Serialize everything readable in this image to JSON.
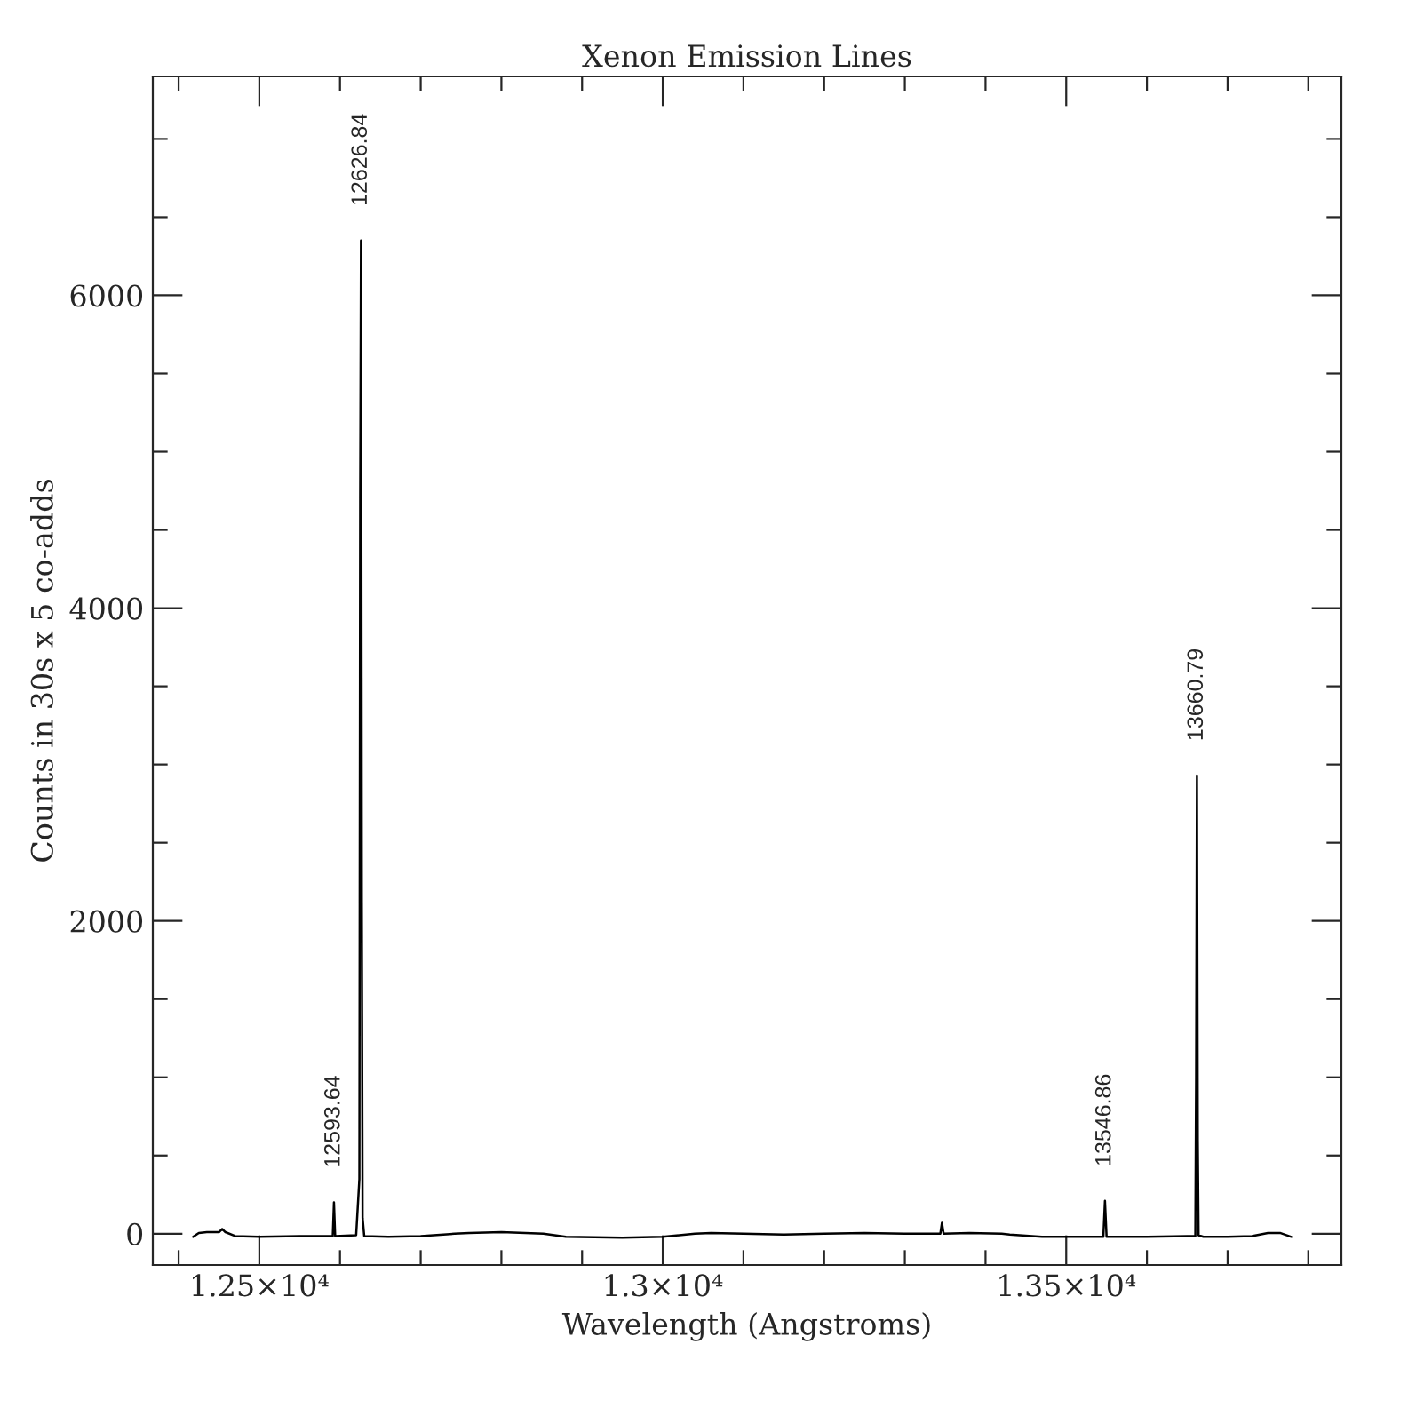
{
  "chart_data": {
    "type": "line",
    "title": "Xenon Emission Lines",
    "xlabel": "Wavelength (Angstroms)",
    "ylabel": "Counts in 30s x 5 co-adds",
    "xlim": [
      12368,
      13841
    ],
    "ylim": [
      -200,
      7400
    ],
    "xticks": [
      {
        "value": 12400,
        "label": null
      },
      {
        "value": 12500,
        "label": "1.25×10⁴"
      },
      {
        "value": 12600,
        "label": null
      },
      {
        "value": 12700,
        "label": null
      },
      {
        "value": 12800,
        "label": null
      },
      {
        "value": 12900,
        "label": null
      },
      {
        "value": 13000,
        "label": "1.3×10⁴"
      },
      {
        "value": 13100,
        "label": null
      },
      {
        "value": 13200,
        "label": null
      },
      {
        "value": 13300,
        "label": null
      },
      {
        "value": 13400,
        "label": null
      },
      {
        "value": 13500,
        "label": "1.35×10⁴"
      },
      {
        "value": 13600,
        "label": null
      },
      {
        "value": 13700,
        "label": null
      },
      {
        "value": 13800,
        "label": null
      }
    ],
    "yticks": [
      0,
      {
        "value": 500,
        "label": null
      },
      {
        "value": 1000,
        "label": null
      },
      {
        "value": 1500,
        "label": null
      },
      2000,
      {
        "value": 2500,
        "label": null
      },
      {
        "value": 3000,
        "label": null
      },
      {
        "value": 3500,
        "label": null
      },
      4000,
      {
        "value": 4500,
        "label": null
      },
      {
        "value": 5000,
        "label": null
      },
      {
        "value": 5500,
        "label": null
      },
      6000,
      {
        "value": 6500,
        "label": null
      },
      {
        "value": 7000,
        "label": null
      }
    ],
    "grid": false,
    "marker": "none",
    "line_style": "solid",
    "series": [
      {
        "color": "#000000",
        "x": [
          12418,
          12425,
          12435,
          12450,
          12454,
          12458,
          12470,
          12500,
          12550,
          12591,
          12592.5,
          12594,
          12620,
          12624,
          12625,
          12626,
          12627,
          12628,
          12630,
          12660,
          12700,
          12742,
          12760,
          12800,
          12852,
          12880,
          12950,
          13000,
          13040,
          13060,
          13100,
          13150,
          13200,
          13250,
          13300,
          13344,
          13346,
          13348,
          13380,
          13420,
          13430,
          13470,
          13500,
          13546,
          13548,
          13550,
          13600,
          13650,
          13660,
          13661,
          13662,
          13663,
          13664,
          13670,
          13700,
          13730,
          13750,
          13765,
          13779
        ],
        "values": [
          -20,
          5,
          10,
          10,
          30,
          10,
          -15,
          -20,
          -15,
          -15,
          200,
          -15,
          -10,
          350,
          4700,
          6350,
          2100,
          100,
          -15,
          -20,
          -15,
          0,
          5,
          10,
          0,
          -20,
          -25,
          -20,
          0,
          5,
          0,
          -5,
          0,
          5,
          0,
          0,
          70,
          0,
          5,
          0,
          -5,
          -20,
          -20,
          -20,
          210,
          -20,
          -20,
          -15,
          -15,
          1000,
          2930,
          600,
          -10,
          -20,
          -20,
          -15,
          5,
          5,
          -20
        ]
      }
    ],
    "annotations": [
      {
        "text": "12593.64",
        "x": 12592.5,
        "y": 200
      },
      {
        "text": "12626.84",
        "x": 12626,
        "y": 6350
      },
      {
        "text": "13546.86",
        "x": 13548,
        "y": 210
      },
      {
        "text": "13660.79",
        "x": 13662,
        "y": 2930
      }
    ]
  }
}
